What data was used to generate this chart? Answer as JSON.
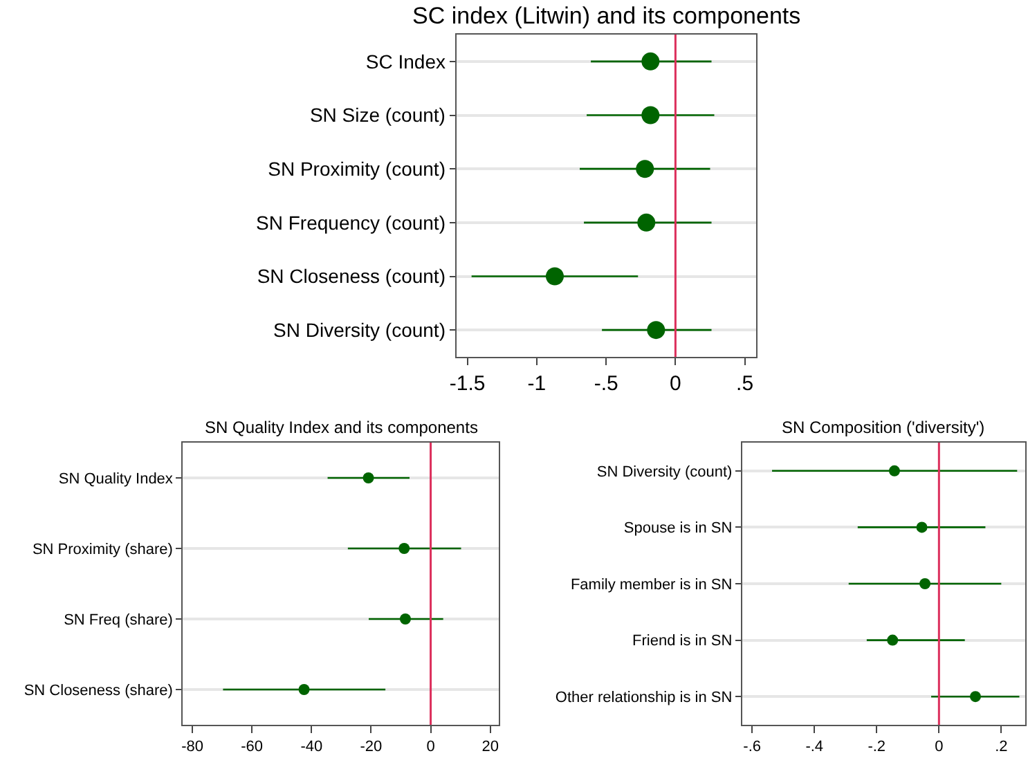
{
  "chart_data": [
    {
      "type": "scatter",
      "orientation": "horizontal",
      "title": "SC index (Litwin) and its components",
      "categories": [
        "SC Index",
        "SN Size (count)",
        "SN Proximity (count)",
        "SN Frequency (count)",
        "SN Closeness (count)",
        "SN Diversity (count)"
      ],
      "values": [
        -0.18,
        -0.18,
        -0.22,
        -0.21,
        -0.87,
        -0.14
      ],
      "errors": [
        [
          -0.61,
          0.26
        ],
        [
          -0.64,
          0.28
        ],
        [
          -0.69,
          0.25
        ],
        [
          -0.66,
          0.26
        ],
        [
          -1.47,
          -0.27
        ],
        [
          -0.53,
          0.26
        ]
      ],
      "color": "#006400",
      "marker": "circle",
      "xlim": [
        -1.58,
        0.58
      ],
      "xticks": [
        {
          "value": -1.5,
          "label": "-1.5"
        },
        -1,
        {
          "value": -0.5,
          "label": "-.5"
        },
        0,
        {
          "value": 0.5,
          "label": ".5"
        }
      ],
      "ref_lines": [
        {
          "axis": "x",
          "value": 0,
          "color": "#dc2f5c"
        }
      ],
      "grid": "y"
    },
    {
      "type": "scatter",
      "orientation": "horizontal",
      "title": "SN Quality Index and its components",
      "categories": [
        "SN Quality Index",
        "SN Proximity (share)",
        "SN Freq (share)",
        "SN Closeness (share)"
      ],
      "values": [
        -20.9,
        -8.9,
        -8.5,
        -42.5
      ],
      "errors": [
        [
          -34.6,
          -7.1
        ],
        [
          -27.8,
          10.2
        ],
        [
          -20.8,
          4.2
        ],
        [
          -69.7,
          -15.2
        ]
      ],
      "color": "#006400",
      "marker": "circle",
      "xlim": [
        -83.2,
        22.9
      ],
      "xticks": [
        -80,
        -60,
        -40,
        -20,
        0,
        20
      ],
      "ref_lines": [
        {
          "axis": "x",
          "value": 0,
          "color": "#dc2f5c"
        }
      ],
      "grid": "y"
    },
    {
      "type": "scatter",
      "orientation": "horizontal",
      "title": "SN Composition ('diversity')",
      "categories": [
        "SN Diversity (count)",
        "Spouse is in SN",
        "Family member is in SN",
        "Friend is in SN",
        "Other relationship is in SN"
      ],
      "values": [
        -0.143,
        -0.055,
        -0.045,
        -0.149,
        0.117
      ],
      "errors": [
        [
          -0.536,
          0.251
        ],
        [
          -0.261,
          0.149
        ],
        [
          -0.29,
          0.2
        ],
        [
          -0.232,
          0.083
        ],
        [
          -0.025,
          0.258
        ]
      ],
      "color": "#006400",
      "marker": "circle",
      "xlim": [
        -0.632,
        0.277
      ],
      "xticks": [
        {
          "value": -0.6,
          "label": "-.6"
        },
        {
          "value": -0.4,
          "label": "-.4"
        },
        {
          "value": -0.2,
          "label": "-.2"
        },
        0,
        {
          "value": 0.2,
          "label": ".2"
        }
      ],
      "ref_lines": [
        {
          "axis": "x",
          "value": 0,
          "color": "#dc2f5c"
        }
      ],
      "grid": "y"
    }
  ]
}
